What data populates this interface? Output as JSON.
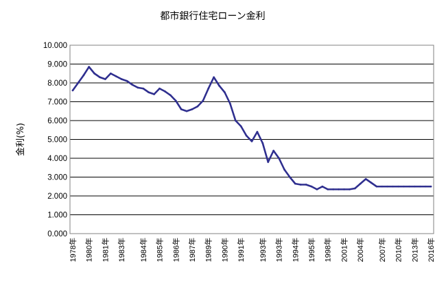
{
  "chart_data": {
    "type": "line",
    "title": "都市銀行住宅ローン金利",
    "ylabel": "金利(%)",
    "xlabel": "",
    "ylim": [
      0,
      10
    ],
    "y_ticks": [
      "0.000",
      "1.000",
      "2.000",
      "3.000",
      "4.000",
      "5.000",
      "6.000",
      "7.000",
      "8.000",
      "9.000",
      "10.000"
    ],
    "grid": true,
    "legend": "none",
    "x_tick_labels": [
      "1978年",
      "1980年",
      "1981年",
      "1983年",
      "1984年",
      "1985年",
      "1986年",
      "1987年",
      "1989年",
      "1990年",
      "1991年",
      "1993年",
      "1993年",
      "1994年",
      "1995年",
      "1998年",
      "2001年",
      "2004年",
      "2007年",
      "2010年",
      "2013年",
      "2016年"
    ],
    "series_color": "#2f2f8f",
    "series": [
      {
        "values": [
          7.6,
          8.0,
          8.4,
          8.85,
          8.5,
          8.3,
          8.2,
          8.5,
          8.35,
          8.2,
          8.1,
          7.9,
          7.75,
          7.7,
          7.5,
          7.4,
          7.7,
          7.55,
          7.35,
          7.05,
          6.6,
          6.5,
          6.6,
          6.75,
          7.05,
          7.7,
          8.3,
          7.85,
          7.5,
          6.9,
          6.0,
          5.7,
          5.2,
          4.9,
          5.4,
          4.8,
          3.8,
          4.4,
          4.0,
          3.4,
          3.0,
          2.65,
          2.6,
          2.6,
          2.5,
          2.35,
          2.5,
          2.35,
          2.35,
          2.35,
          2.35,
          2.35,
          2.4,
          2.65,
          2.9,
          2.7,
          2.5,
          2.5,
          2.5,
          2.5,
          2.5,
          2.5,
          2.5,
          2.5,
          2.5,
          2.5,
          2.5
        ]
      }
    ]
  }
}
